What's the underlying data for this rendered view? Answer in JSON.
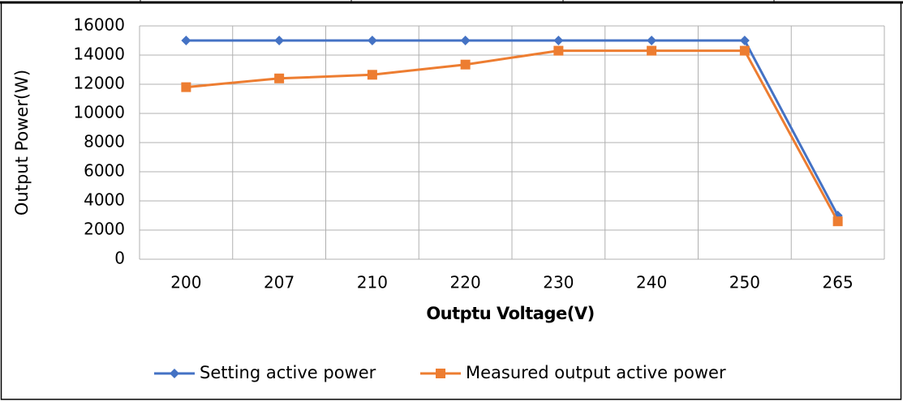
{
  "chart_data": {
    "type": "line",
    "categories": [
      "200",
      "207",
      "210",
      "220",
      "230",
      "240",
      "250",
      "265"
    ],
    "series": [
      {
        "name": "Setting active power",
        "color": "#4472c4",
        "marker": "diamond",
        "values": [
          15000,
          15000,
          15000,
          15000,
          15000,
          15000,
          15000,
          3000
        ]
      },
      {
        "name": "Measured output active power",
        "color": "#ed7d31",
        "marker": "square",
        "values": [
          11800,
          12400,
          12650,
          13350,
          14300,
          14300,
          14300,
          2600
        ]
      }
    ],
    "ylim": [
      0,
      16000
    ],
    "yticks": [
      0,
      2000,
      4000,
      6000,
      8000,
      10000,
      12000,
      14000,
      16000
    ],
    "xlabel": "Outptu Voltage(V)",
    "ylabel": "Output Power(W)",
    "grid": true,
    "legend": "bottom"
  }
}
